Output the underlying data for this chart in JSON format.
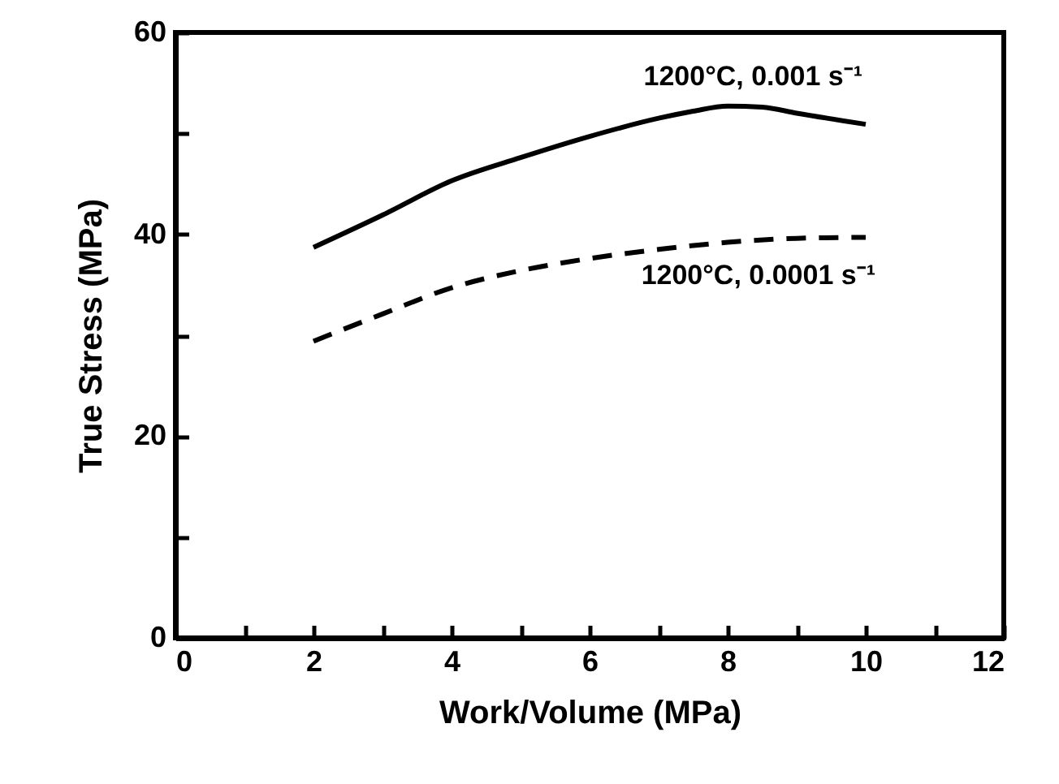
{
  "chart_data": {
    "type": "line",
    "xlabel": "Work/Volume (MPa)",
    "ylabel": "True Stress (MPa)",
    "xlim": [
      0,
      12
    ],
    "ylim": [
      0,
      60
    ],
    "xticks": [
      0,
      {
        "value": 1,
        "label": null
      },
      2,
      {
        "value": 3,
        "label": null
      },
      4,
      {
        "value": 5,
        "label": null
      },
      6,
      {
        "value": 7,
        "label": null
      },
      8,
      {
        "value": 9,
        "label": null
      },
      10,
      {
        "value": 11,
        "label": null
      },
      12
    ],
    "yticks": [
      0,
      {
        "value": 10,
        "label": null
      },
      20,
      {
        "value": 30,
        "label": null
      },
      40,
      {
        "value": 50,
        "label": null
      },
      60
    ],
    "grid": false,
    "marker": "none",
    "series": [
      {
        "name": "1200°C, 0.001 s⁻¹",
        "color": "#000000",
        "line_style": "solid",
        "x": [
          2,
          3,
          4,
          5,
          6,
          7,
          7.5,
          8,
          8.5,
          9,
          10
        ],
        "values": [
          38.7,
          41.9,
          45.3,
          47.6,
          49.7,
          51.5,
          52.2,
          52.7,
          52.6,
          52.0,
          50.9
        ]
      },
      {
        "name": "1200°C, 0.0001 s⁻¹",
        "color": "#000000",
        "line_style": "dashed",
        "x": [
          2,
          3,
          4,
          5,
          6,
          7,
          8,
          9,
          10
        ],
        "values": [
          29.4,
          32.1,
          34.7,
          36.4,
          37.6,
          38.5,
          39.2,
          39.6,
          39.7
        ]
      }
    ]
  }
}
